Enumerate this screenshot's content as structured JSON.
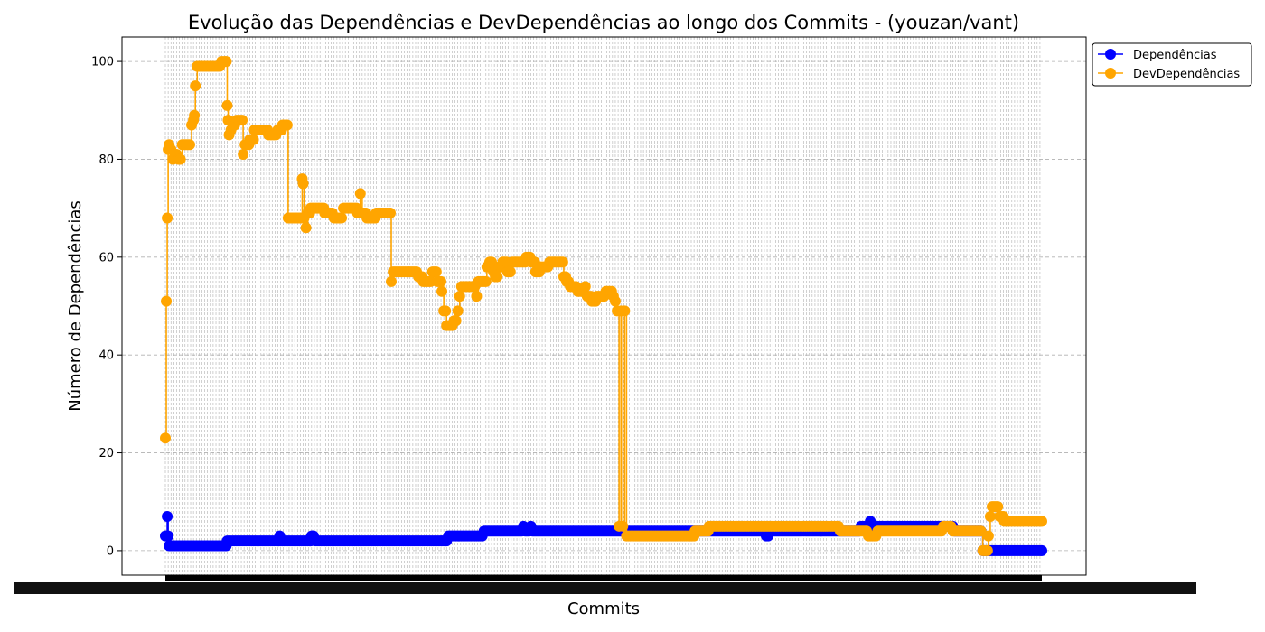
{
  "chart_data": {
    "type": "line",
    "title": "Evolução das Dependências e DevDependências ao longo dos Commits - (youzan/vant)",
    "xlabel": "Commits",
    "ylabel": "Número de Dependências",
    "ylim": [
      -5,
      105
    ],
    "yticks": [
      0,
      20,
      40,
      60,
      80,
      100
    ],
    "grid": "horizontal dashed",
    "legend_position": "upper-left outside plot",
    "x_tick_labels_note": "",
    "series": [
      {
        "name": "Dependências",
        "color": "#0000ff",
        "marker": "circle",
        "segments": [
          [
            0,
            3
          ],
          [
            1,
            3
          ],
          [
            2,
            7
          ],
          [
            3,
            3
          ],
          [
            4,
            1
          ],
          [
            20,
            1
          ],
          [
            30,
            1
          ],
          [
            45,
            1
          ],
          [
            58,
            1
          ],
          [
            65,
            1
          ],
          [
            66,
            2
          ],
          [
            100,
            2
          ],
          [
            120,
            2
          ],
          [
            121,
            2
          ],
          [
            122,
            3
          ],
          [
            123,
            2
          ],
          [
            150,
            2
          ],
          [
            155,
            2
          ],
          [
            156,
            3
          ],
          [
            157,
            3
          ],
          [
            158,
            3
          ],
          [
            160,
            2
          ],
          [
            200,
            2
          ],
          [
            230,
            2
          ],
          [
            250,
            2
          ],
          [
            280,
            2
          ],
          [
            295,
            2
          ],
          [
            300,
            2
          ],
          [
            302,
            3
          ],
          [
            330,
            3
          ],
          [
            340,
            4
          ],
          [
            380,
            4
          ],
          [
            382,
            5
          ],
          [
            384,
            4
          ],
          [
            390,
            5
          ],
          [
            392,
            4
          ],
          [
            450,
            4
          ],
          [
            550,
            4
          ],
          [
            600,
            4
          ],
          [
            640,
            4
          ],
          [
            641,
            3
          ],
          [
            645,
            4
          ],
          [
            700,
            4
          ],
          [
            720,
            4
          ],
          [
            740,
            4
          ],
          [
            742,
            5
          ],
          [
            750,
            4
          ],
          [
            752,
            6
          ],
          [
            754,
            4
          ],
          [
            760,
            5
          ],
          [
            800,
            5
          ],
          [
            840,
            5
          ],
          [
            842,
            4
          ],
          [
            850,
            4
          ],
          [
            870,
            4
          ],
          [
            872,
            0
          ],
          [
            900,
            0
          ],
          [
            935,
            0
          ]
        ]
      },
      {
        "name": "DevDependências",
        "color": "#ffa500",
        "marker": "circle",
        "segments": [
          [
            0,
            23
          ],
          [
            1,
            51
          ],
          [
            2,
            68
          ],
          [
            3,
            82
          ],
          [
            4,
            83
          ],
          [
            6,
            82
          ],
          [
            8,
            80
          ],
          [
            10,
            81
          ],
          [
            14,
            80
          ],
          [
            18,
            83
          ],
          [
            26,
            83
          ],
          [
            28,
            87
          ],
          [
            30,
            88
          ],
          [
            31,
            89
          ],
          [
            32,
            95
          ],
          [
            34,
            99
          ],
          [
            50,
            99
          ],
          [
            60,
            100
          ],
          [
            65,
            100
          ],
          [
            66,
            91
          ],
          [
            67,
            88
          ],
          [
            68,
            85
          ],
          [
            70,
            86
          ],
          [
            72,
            87
          ],
          [
            74,
            87
          ],
          [
            76,
            88
          ],
          [
            80,
            88
          ],
          [
            83,
            81
          ],
          [
            85,
            83
          ],
          [
            90,
            84
          ],
          [
            95,
            86
          ],
          [
            110,
            85
          ],
          [
            120,
            86
          ],
          [
            125,
            87
          ],
          [
            130,
            87
          ],
          [
            131,
            68
          ],
          [
            140,
            68
          ],
          [
            145,
            68
          ],
          [
            146,
            76
          ],
          [
            147,
            75
          ],
          [
            148,
            68
          ],
          [
            150,
            66
          ],
          [
            152,
            69
          ],
          [
            155,
            70
          ],
          [
            165,
            70
          ],
          [
            170,
            69
          ],
          [
            180,
            68
          ],
          [
            190,
            70
          ],
          [
            200,
            70
          ],
          [
            205,
            69
          ],
          [
            208,
            73
          ],
          [
            210,
            69
          ],
          [
            215,
            68
          ],
          [
            220,
            68
          ],
          [
            225,
            69
          ],
          [
            240,
            69
          ],
          [
            241,
            55
          ],
          [
            243,
            57
          ],
          [
            260,
            57
          ],
          [
            270,
            56
          ],
          [
            275,
            55
          ],
          [
            285,
            57
          ],
          [
            290,
            55
          ],
          [
            295,
            53
          ],
          [
            297,
            49
          ],
          [
            300,
            46
          ],
          [
            308,
            47
          ],
          [
            312,
            49
          ],
          [
            314,
            52
          ],
          [
            316,
            54
          ],
          [
            325,
            54
          ],
          [
            330,
            54
          ],
          [
            332,
            52
          ],
          [
            334,
            55
          ],
          [
            340,
            55
          ],
          [
            343,
            58
          ],
          [
            346,
            59
          ],
          [
            350,
            57
          ],
          [
            352,
            56
          ],
          [
            356,
            58
          ],
          [
            360,
            59
          ],
          [
            365,
            57
          ],
          [
            368,
            57
          ],
          [
            370,
            59
          ],
          [
            380,
            59
          ],
          [
            385,
            60
          ],
          [
            390,
            59
          ],
          [
            395,
            57
          ],
          [
            400,
            58
          ],
          [
            410,
            59
          ],
          [
            420,
            59
          ],
          [
            425,
            56
          ],
          [
            428,
            55
          ],
          [
            432,
            54
          ],
          [
            440,
            53
          ],
          [
            448,
            54
          ],
          [
            450,
            52
          ],
          [
            455,
            51
          ],
          [
            460,
            52
          ],
          [
            470,
            53
          ],
          [
            478,
            52
          ],
          [
            480,
            51
          ],
          [
            482,
            49
          ],
          [
            484,
            5
          ],
          [
            486,
            49
          ],
          [
            488,
            5
          ],
          [
            490,
            49
          ],
          [
            492,
            3
          ],
          [
            500,
            3
          ],
          [
            520,
            3
          ],
          [
            540,
            3
          ],
          [
            560,
            3
          ],
          [
            565,
            4
          ],
          [
            580,
            5
          ],
          [
            600,
            5
          ],
          [
            620,
            5
          ],
          [
            640,
            5
          ],
          [
            660,
            5
          ],
          [
            680,
            5
          ],
          [
            700,
            5
          ],
          [
            720,
            4
          ],
          [
            740,
            4
          ],
          [
            750,
            3
          ],
          [
            760,
            4
          ],
          [
            780,
            4
          ],
          [
            800,
            4
          ],
          [
            810,
            4
          ],
          [
            830,
            5
          ],
          [
            840,
            4
          ],
          [
            860,
            4
          ],
          [
            870,
            4
          ],
          [
            872,
            0
          ],
          [
            875,
            0
          ],
          [
            878,
            3
          ],
          [
            880,
            7
          ],
          [
            882,
            9
          ],
          [
            886,
            9
          ],
          [
            890,
            7
          ],
          [
            895,
            6
          ],
          [
            910,
            6
          ],
          [
            935,
            6
          ]
        ]
      }
    ]
  },
  "legend": {
    "items": [
      {
        "label": "Dependências",
        "color": "#0000ff"
      },
      {
        "label": "DevDependências",
        "color": "#ffa500"
      }
    ]
  }
}
